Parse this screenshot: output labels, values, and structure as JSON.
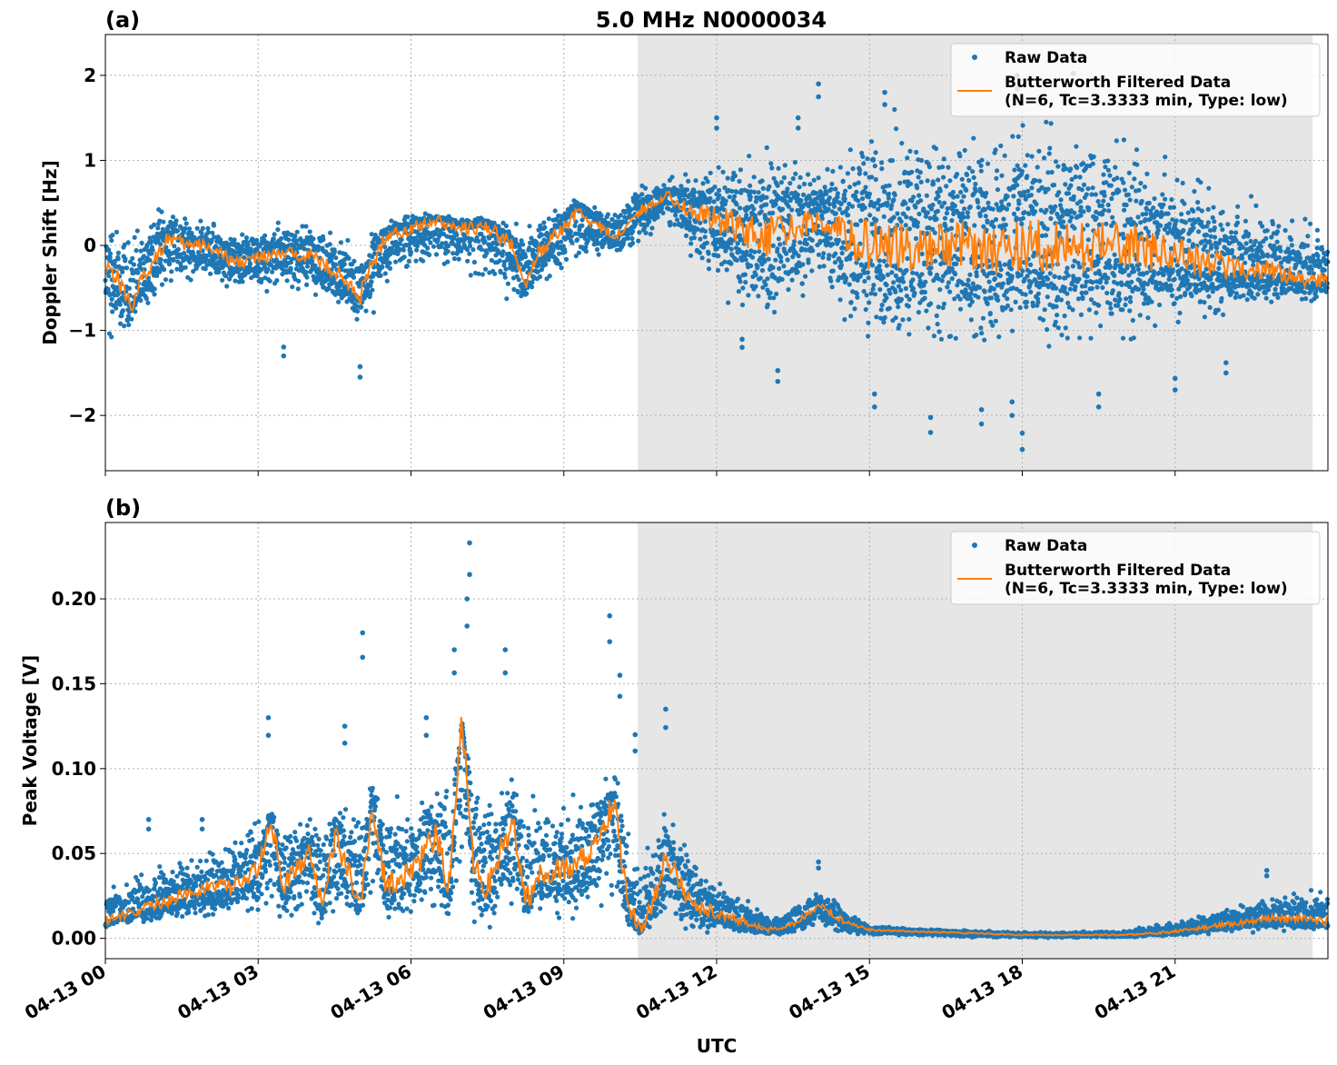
{
  "figure": {
    "title": "5.0 MHz N0000034",
    "xlabel": "UTC",
    "x_tick_labels": [
      "04-13 00",
      "04-13 03",
      "04-13 06",
      "04-13 09",
      "04-13 12",
      "04-13 15",
      "04-13 18",
      "04-13 21"
    ]
  },
  "colors": {
    "raw": "#1f77b4",
    "filtered": "#ff7f0e",
    "shade": "#e6e6e6",
    "grid": "#b0b0b0"
  },
  "legend": {
    "raw_label": "Raw Data",
    "filtered_line1": "Butterworth Filtered Data",
    "filtered_line2": "(N=6, Tc=3.3333 min, Type: low)"
  },
  "chart_data": [
    {
      "type": "scatter",
      "panel_label": "(a)",
      "ylabel": "Doppler Shift [Hz]",
      "x_unit": "hours UTC on 04-13",
      "xlim": [
        0,
        24
      ],
      "ylim": [
        -2.65,
        2.48
      ],
      "y_ticks": [
        2,
        1,
        0,
        -1,
        -2
      ],
      "y_tick_labels": [
        "2",
        "1",
        "0",
        "−1",
        "−2"
      ],
      "grid": true,
      "legend_position": "upper right",
      "shaded_interval": [
        10.45,
        23.7
      ],
      "series": [
        {
          "name": "Butterworth Filtered Data",
          "kind": "line",
          "x": [
            0,
            0.25,
            0.5,
            0.75,
            1.0,
            1.25,
            1.5,
            2.0,
            2.5,
            3.0,
            3.5,
            4.0,
            4.5,
            5.0,
            5.25,
            5.5,
            6.0,
            6.5,
            7.0,
            7.5,
            8.0,
            8.25,
            8.5,
            9.0,
            9.25,
            9.5,
            10.0,
            10.5,
            11.0,
            11.5,
            12.0,
            12.5,
            13.0,
            13.5,
            14.0,
            14.5,
            15.0,
            15.5,
            16.0,
            16.5,
            17.0,
            17.5,
            18.0,
            18.5,
            19.0,
            19.5,
            20.0,
            20.5,
            21.0,
            21.5,
            22.0,
            22.5,
            23.0,
            23.5,
            24.0
          ],
          "y": [
            -0.2,
            -0.4,
            -0.7,
            -0.4,
            -0.1,
            0.1,
            0.0,
            0.0,
            -0.2,
            -0.15,
            -0.1,
            -0.1,
            -0.3,
            -0.6,
            -0.2,
            0.1,
            0.2,
            0.3,
            0.2,
            0.2,
            0.0,
            -0.5,
            -0.1,
            0.2,
            0.4,
            0.3,
            0.1,
            0.4,
            0.6,
            0.4,
            0.3,
            0.2,
            0.1,
            0.2,
            0.3,
            0.15,
            0.0,
            0.0,
            -0.05,
            0.05,
            0.0,
            -0.05,
            0.0,
            0.0,
            -0.05,
            0.0,
            0.0,
            -0.05,
            -0.1,
            -0.2,
            -0.25,
            -0.3,
            -0.3,
            -0.4,
            -0.4
          ]
        },
        {
          "name": "Raw Data",
          "kind": "scatter",
          "envelope_x": [
            0,
            1,
            2,
            3,
            4,
            5,
            6,
            7,
            8,
            9,
            10,
            10.5,
            11,
            12,
            13,
            14,
            15,
            16,
            17,
            18,
            19,
            20,
            21,
            22,
            23,
            24
          ],
          "envelope_low": [
            -1.2,
            -0.8,
            -0.5,
            -0.6,
            -0.6,
            -1.0,
            -0.4,
            -0.4,
            -0.8,
            -0.4,
            -0.2,
            0.0,
            0.2,
            -0.6,
            -1.2,
            -0.5,
            -1.5,
            -1.5,
            -1.5,
            -1.6,
            -1.5,
            -1.5,
            -1.2,
            -0.9,
            -0.7,
            -0.7
          ],
          "envelope_high": [
            0.3,
            0.5,
            0.3,
            0.3,
            0.3,
            0.2,
            0.4,
            0.4,
            0.3,
            0.6,
            0.5,
            0.8,
            0.8,
            1.2,
            1.5,
            1.0,
            1.8,
            1.7,
            1.8,
            2.0,
            1.8,
            1.7,
            1.2,
            0.8,
            0.5,
            0.3
          ],
          "outliers": [
            [
              5.0,
              -1.55
            ],
            [
              3.5,
              -1.3
            ],
            [
              12.5,
              -1.2
            ],
            [
              13.2,
              -1.6
            ],
            [
              15.1,
              -1.9
            ],
            [
              16.2,
              -2.2
            ],
            [
              17.2,
              -2.1
            ],
            [
              17.8,
              -2.0
            ],
            [
              18.0,
              -2.4
            ],
            [
              19.5,
              -1.9
            ],
            [
              21.0,
              -1.7
            ],
            [
              22.0,
              -1.5
            ],
            [
              13.6,
              1.5
            ],
            [
              14.0,
              1.9
            ],
            [
              15.3,
              1.8
            ],
            [
              17.9,
              2.0
            ],
            [
              19.0,
              2.2
            ],
            [
              12.0,
              1.5
            ]
          ]
        }
      ]
    },
    {
      "type": "scatter",
      "panel_label": "(b)",
      "ylabel": "Peak Voltage [V]",
      "x_unit": "hours UTC on 04-13",
      "xlim": [
        0,
        24
      ],
      "ylim": [
        -0.012,
        0.245
      ],
      "y_ticks": [
        0.2,
        0.15,
        0.1,
        0.05,
        0.0
      ],
      "y_tick_labels": [
        "0.20",
        "0.15",
        "0.10",
        "0.05",
        "0.00"
      ],
      "grid": true,
      "legend_position": "upper right",
      "shaded_interval": [
        10.45,
        23.7
      ],
      "series": [
        {
          "name": "Butterworth Filtered Data",
          "kind": "line",
          "x": [
            0,
            0.5,
            1.0,
            1.5,
            2.0,
            2.5,
            3.0,
            3.25,
            3.5,
            4.0,
            4.25,
            4.5,
            5.0,
            5.25,
            5.5,
            6.0,
            6.5,
            6.75,
            7.0,
            7.25,
            7.5,
            8.0,
            8.25,
            8.5,
            9.0,
            9.5,
            10.0,
            10.25,
            10.5,
            10.75,
            11.0,
            11.5,
            12.0,
            12.5,
            13.0,
            13.5,
            14.0,
            14.5,
            15.0,
            16.0,
            17.0,
            18.0,
            19.0,
            20.0,
            21.0,
            22.0,
            23.0,
            24.0
          ],
          "y": [
            0.01,
            0.015,
            0.02,
            0.025,
            0.03,
            0.03,
            0.04,
            0.07,
            0.03,
            0.05,
            0.02,
            0.06,
            0.02,
            0.08,
            0.03,
            0.04,
            0.06,
            0.03,
            0.13,
            0.04,
            0.03,
            0.07,
            0.02,
            0.04,
            0.04,
            0.05,
            0.08,
            0.02,
            0.005,
            0.02,
            0.05,
            0.02,
            0.015,
            0.01,
            0.005,
            0.008,
            0.02,
            0.01,
            0.005,
            0.004,
            0.003,
            0.002,
            0.002,
            0.002,
            0.004,
            0.008,
            0.012,
            0.01
          ]
        },
        {
          "name": "Raw Data",
          "kind": "scatter",
          "envelope_x": [
            0,
            1,
            2,
            3,
            4,
            5,
            6,
            7,
            8,
            9,
            10,
            10.5,
            11,
            12,
            13,
            14,
            15,
            16,
            17,
            18,
            19,
            20,
            21,
            22,
            23,
            24
          ],
          "envelope_low": [
            0.005,
            0.008,
            0.008,
            0.005,
            0.005,
            0.005,
            0.005,
            0.005,
            0.005,
            0.005,
            0.005,
            0.0,
            0.003,
            0.002,
            0.001,
            0.003,
            0.001,
            0.001,
            0.0,
            0.0,
            0.0,
            0.0,
            0.001,
            0.002,
            0.003,
            0.003
          ],
          "envelope_high": [
            0.035,
            0.045,
            0.055,
            0.075,
            0.08,
            0.1,
            0.09,
            0.12,
            0.1,
            0.09,
            0.1,
            0.05,
            0.08,
            0.04,
            0.015,
            0.03,
            0.008,
            0.006,
            0.005,
            0.004,
            0.004,
            0.005,
            0.012,
            0.02,
            0.03,
            0.035
          ],
          "outliers": [
            [
              3.2,
              0.13
            ],
            [
              5.05,
              0.18
            ],
            [
              6.3,
              0.13
            ],
            [
              7.15,
              0.233
            ],
            [
              7.1,
              0.2
            ],
            [
              6.85,
              0.17
            ],
            [
              7.85,
              0.17
            ],
            [
              9.9,
              0.19
            ],
            [
              10.1,
              0.155
            ],
            [
              10.4,
              0.12
            ],
            [
              11.0,
              0.135
            ],
            [
              4.7,
              0.125
            ],
            [
              1.9,
              0.07
            ],
            [
              0.85,
              0.07
            ],
            [
              14.0,
              0.045
            ],
            [
              22.8,
              0.04
            ]
          ]
        }
      ]
    }
  ]
}
